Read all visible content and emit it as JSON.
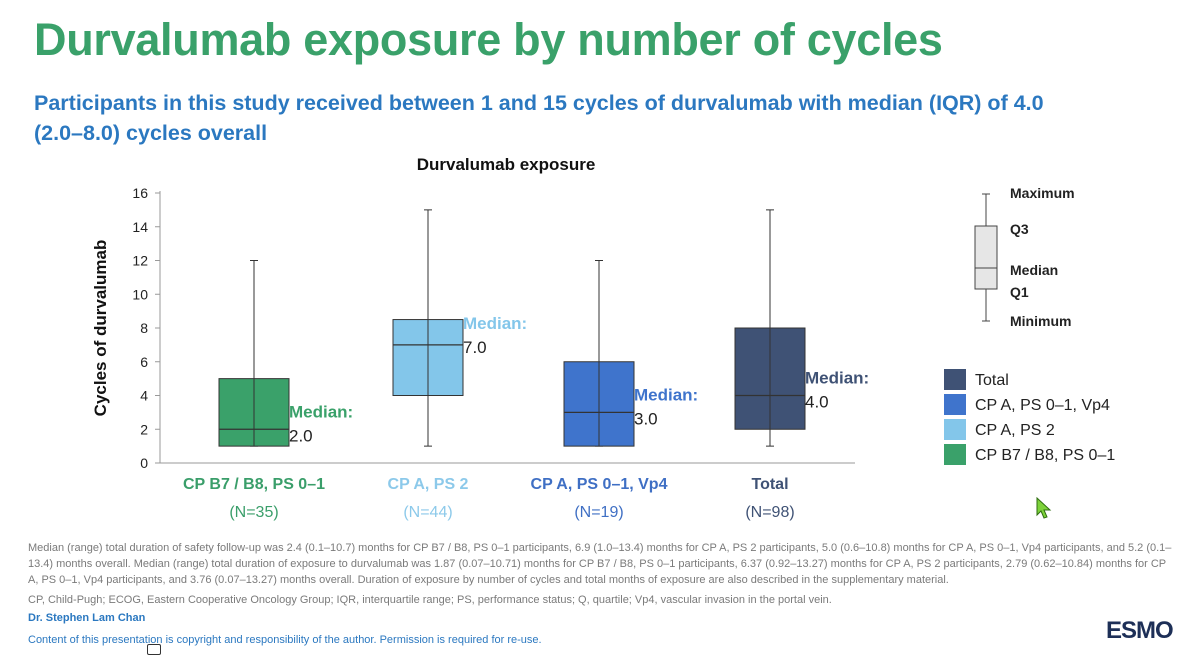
{
  "header": {
    "title": "Durvalumab exposure by number of cycles",
    "subtitle": "Participants in this study received between 1 and 15 cycles of durvalumab with median (IQR) of 4.0 (2.0–8.0) cycles overall"
  },
  "chart_data": {
    "type": "boxplot",
    "title": "Durvalumab exposure",
    "ylabel": "Cycles of durvalumab",
    "xlabel": "",
    "ylim": [
      0,
      16
    ],
    "yticks": [
      0,
      2,
      4,
      6,
      8,
      10,
      12,
      14,
      16
    ],
    "median_label": "Median:",
    "groups": [
      {
        "name": "CP B7 / B8, PS 0–1",
        "n": "(N=35)",
        "min": 1,
        "q1": 1,
        "median": 2,
        "q3": 5,
        "max": 12,
        "median_text": "2.0",
        "color": "#3aa16a",
        "label_color": "#3a9e6a",
        "median_label_color": "#3aa16a"
      },
      {
        "name": "CP A, PS 2",
        "n": "(N=44)",
        "min": 1,
        "q1": 4,
        "median": 7,
        "q3": 8.5,
        "max": 15,
        "median_text": "7.0",
        "color": "#83c6ea",
        "label_color": "#8cc9ea",
        "median_label_color": "#83c6ea"
      },
      {
        "name": "CP A, PS 0–1, Vp4",
        "n": "(N=19)",
        "min": 1,
        "q1": 1,
        "median": 3,
        "q3": 6,
        "max": 12,
        "median_text": "3.0",
        "color": "#3f74cc",
        "label_color": "#3f6fc4",
        "median_label_color": "#3f74cc"
      },
      {
        "name": "Total",
        "n": "(N=98)",
        "min": 1,
        "q1": 2,
        "median": 4,
        "q3": 8,
        "max": 15,
        "median_text": "4.0",
        "color": "#3f5275",
        "label_color": "#3f5275",
        "median_label_color": "#3f5275"
      }
    ],
    "box_key": {
      "maximum": "Maximum",
      "q3": "Q3",
      "median": "Median",
      "q1": "Q1",
      "minimum": "Minimum"
    },
    "legend": [
      {
        "label": "Total",
        "color": "#3f5275"
      },
      {
        "label": "CP A, PS 0–1, Vp4",
        "color": "#3f74cc"
      },
      {
        "label": "CP A, PS 2",
        "color": "#83c6ea"
      },
      {
        "label": "CP B7 / B8, PS 0–1",
        "color": "#3aa16a"
      }
    ]
  },
  "footnotes": {
    "text1": "Median (range) total duration of safety follow-up was 2.4 (0.1–10.7) months for CP B7 / B8, PS 0–1 participants, 6.9 (1.0–13.4) months for CP A, PS 2 participants, 5.0 (0.6–10.8) months for CP A, PS 0–1, Vp4 participants, and 5.2 (0.1–13.4) months overall. Median (range) total duration of exposure to durvalumab was 1.87 (0.07–10.71) months for CP B7 / B8, PS 0–1 participants, 6.37 (0.92–13.27) months for CP A, PS 2 participants, 2.79 (0.62–10.84) months for CP A, PS 0–1, Vp4 participants, and 3.76 (0.07–13.27) months overall. Duration of exposure by number of cycles and total months of exposure are also described in the supplementary material.",
    "text2": "CP, Child-Pugh; ECOG, Eastern Cooperative Oncology Group; IQR, interquartile range; PS, performance status; Q, quartile; Vp4, vascular invasion in the portal vein.",
    "presenter": "Dr. Stephen Lam Chan",
    "copyright": "Content of this presentation is copyright and responsibility of the author. Permission is required for re-use."
  },
  "logo": {
    "text": "ESMO"
  },
  "colors": {
    "title": "#3aa16a",
    "subtitle": "#2b78c0"
  }
}
